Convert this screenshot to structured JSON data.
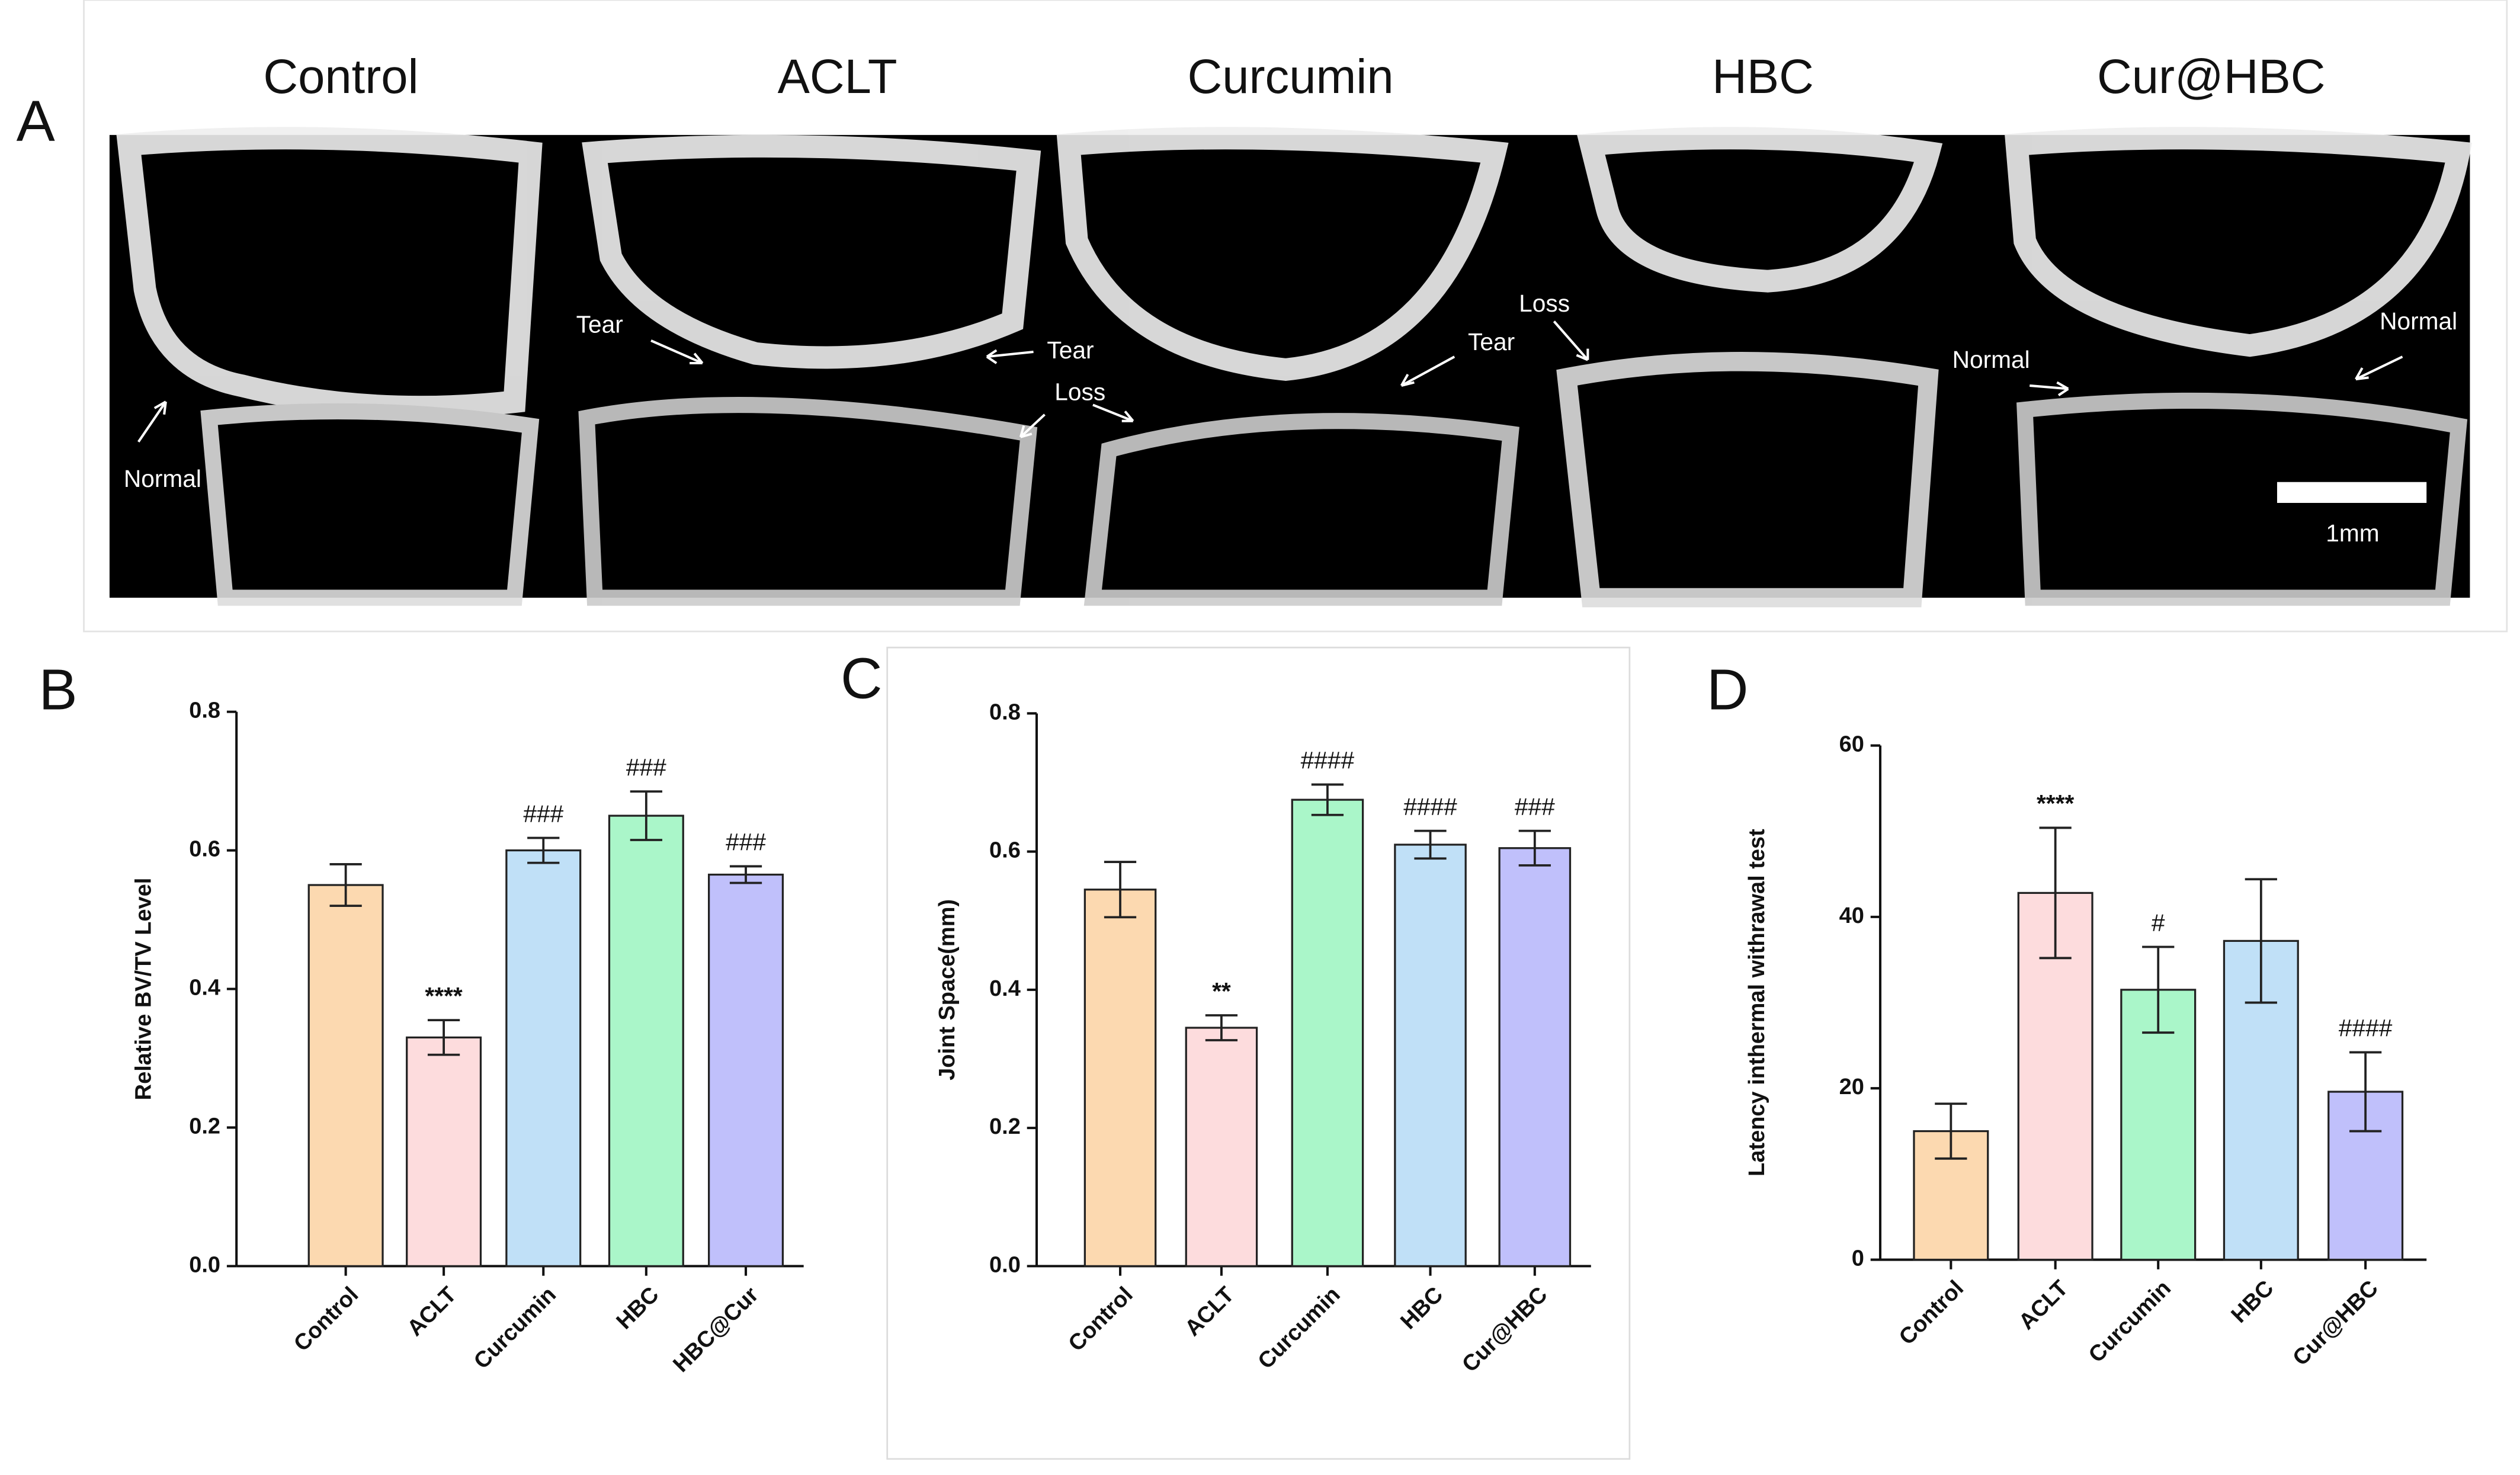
{
  "panel_a": {
    "label": "A",
    "titles": [
      "Control",
      "ACLT",
      "Curcumin",
      "HBC",
      "Cur@HBC"
    ],
    "annotations": [
      "Normal",
      "Tear",
      "Tear",
      "Loss",
      "Tear",
      "Loss",
      "Normal",
      "Normal"
    ],
    "scale_bar": "1mm"
  },
  "chart_data": [
    {
      "type": "bar",
      "panel_label": "B",
      "y_label": "Relative BV/TV Level",
      "categories": [
        "Control",
        "ACLT",
        "Curcumin",
        "HBC",
        "HBC@Cur"
      ],
      "values": [
        0.55,
        0.33,
        0.6,
        0.65,
        0.565
      ],
      "errors": [
        0.03,
        0.025,
        0.018,
        0.035,
        0.012
      ],
      "significance": [
        null,
        "****",
        "###",
        "###",
        "###"
      ],
      "colors": [
        "#fcd9b0",
        "#fddcdd",
        "#c0e0f7",
        "#aaf6c9",
        "#c0c0fb"
      ],
      "ylim": [
        0,
        0.8
      ],
      "yticks": [
        {
          "value": 0,
          "label": "0.0"
        },
        0.2,
        0.4,
        0.6,
        0.8
      ],
      "grid": false
    },
    {
      "type": "bar",
      "panel_label": "C",
      "y_label": "Joint Space(mm)",
      "categories": [
        "Control",
        "ACLT",
        "Curcumin",
        "HBC",
        "Cur@HBC"
      ],
      "values": [
        0.545,
        0.345,
        0.675,
        0.61,
        0.605
      ],
      "errors": [
        0.04,
        0.018,
        0.022,
        0.02,
        0.025
      ],
      "significance": [
        null,
        "**",
        "####",
        "####",
        "###"
      ],
      "colors": [
        "#fcd9b0",
        "#fddcdd",
        "#aaf6c9",
        "#c0e0f7",
        "#c0c0fb"
      ],
      "ylim": [
        0,
        0.8
      ],
      "yticks": [
        {
          "value": 0,
          "label": "0.0"
        },
        0.2,
        0.4,
        0.6,
        0.8
      ],
      "grid": false
    },
    {
      "type": "bar",
      "panel_label": "D",
      "y_label": "Latency inthermal withrawal test",
      "categories": [
        "Control",
        "ACLT",
        "Curcumin",
        "HBC",
        "Cur@HBC"
      ],
      "values": [
        15,
        42.8,
        31.5,
        37.2,
        19.6
      ],
      "errors": [
        3.2,
        7.6,
        5,
        7.2,
        4.6
      ],
      "significance": [
        null,
        "****",
        "#",
        null,
        "####"
      ],
      "colors": [
        "#fcd9b0",
        "#fddcdd",
        "#aaf6c9",
        "#c0e0f7",
        "#c0c0fb"
      ],
      "ylim": [
        0,
        60
      ],
      "yticks": [
        0,
        20,
        40,
        60
      ],
      "grid": false
    }
  ]
}
